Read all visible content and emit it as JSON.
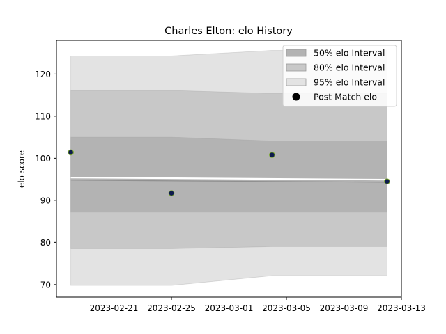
{
  "chart_data": {
    "type": "area",
    "title": "Charles Elton: elo History",
    "xlabel": "",
    "ylabel": "elo score",
    "x": [
      "2023-02-18",
      "2023-02-25",
      "2023-03-04",
      "2023-03-12"
    ],
    "x_ticks": [
      "2023-02-21",
      "2023-02-25",
      "2023-03-01",
      "2023-03-05",
      "2023-03-09",
      "2023-03-13"
    ],
    "xlim": [
      "2023-02-17",
      "2023-03-13"
    ],
    "ylim": [
      67,
      128
    ],
    "y_ticks": [
      70,
      80,
      90,
      100,
      110,
      120
    ],
    "grid": false,
    "legend_position": "top-right",
    "series": [
      {
        "name": "50% elo Interval",
        "kind": "band",
        "color": "#b3b3b3",
        "lower": [
          87.2,
          87.2,
          87.2,
          87.2
        ],
        "upper": [
          105.0,
          105.0,
          104.1,
          104.1
        ]
      },
      {
        "name": "80% elo Interval",
        "kind": "band",
        "color": "#c8c8c8",
        "lower": [
          78.5,
          78.5,
          79.0,
          79.0
        ],
        "upper": [
          116.1,
          116.1,
          115.4,
          115.4
        ]
      },
      {
        "name": "95% elo Interval",
        "kind": "band",
        "color": "#e3e3e3",
        "lower": [
          69.8,
          69.8,
          72.1,
          72.1
        ],
        "upper": [
          124.3,
          124.3,
          125.6,
          125.6
        ]
      },
      {
        "name": "Post Match elo",
        "kind": "scatter",
        "color": "#0d1b4d",
        "edge_color": "#7aa62a",
        "y": [
          101.4,
          91.7,
          100.8,
          94.5
        ]
      }
    ],
    "mean_line": [
      95.0,
      94.5
    ]
  }
}
